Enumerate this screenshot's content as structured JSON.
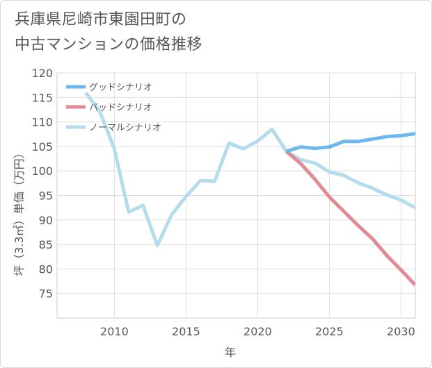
{
  "title_line1": "兵庫県尼崎市東園田町の",
  "title_line2": "中古マンションの価格推移",
  "chart_data": {
    "type": "line",
    "xlabel": "年",
    "ylabel": "坪（3.3㎡）単価（万円）",
    "xlim": [
      2006,
      2031
    ],
    "ylim": [
      70,
      120
    ],
    "xticks": [
      2010,
      2015,
      2020,
      2025,
      2030
    ],
    "yticks": [
      75,
      80,
      85,
      90,
      95,
      100,
      105,
      110,
      115,
      120
    ],
    "grid": true,
    "legend_position": "top-left",
    "series": [
      {
        "name": "グッドシナリオ",
        "color": "#6ab8ee",
        "x": [
          2022,
          2023,
          2024,
          2025,
          2026,
          2027,
          2028,
          2029,
          2030,
          2031
        ],
        "values": [
          104.0,
          104.9,
          104.6,
          104.9,
          106.0,
          106.0,
          106.5,
          107.0,
          107.2,
          107.6
        ]
      },
      {
        "name": "バッドシナリオ",
        "color": "#e08a93",
        "x": [
          2022,
          2023,
          2024,
          2025,
          2026,
          2027,
          2028,
          2029,
          2030,
          2031
        ],
        "values": [
          104.0,
          101.5,
          98.3,
          94.7,
          91.8,
          88.9,
          86.2,
          82.8,
          79.8,
          76.7
        ]
      },
      {
        "name": "ノーマルシナリオ",
        "color": "#b5dcec",
        "x": [
          2008,
          2009,
          2010,
          2011,
          2012,
          2013,
          2014,
          2015,
          2016,
          2017,
          2018,
          2019,
          2020,
          2021,
          2022,
          2023,
          2024,
          2025,
          2026,
          2027,
          2028,
          2029,
          2030,
          2031
        ],
        "values": [
          116.0,
          112.0,
          104.5,
          91.6,
          93.0,
          84.8,
          91.1,
          94.8,
          98.0,
          97.9,
          105.7,
          104.5,
          106.1,
          108.5,
          104.0,
          102.3,
          101.6,
          99.8,
          99.1,
          97.6,
          96.5,
          95.1,
          94.1,
          92.5
        ]
      }
    ]
  }
}
